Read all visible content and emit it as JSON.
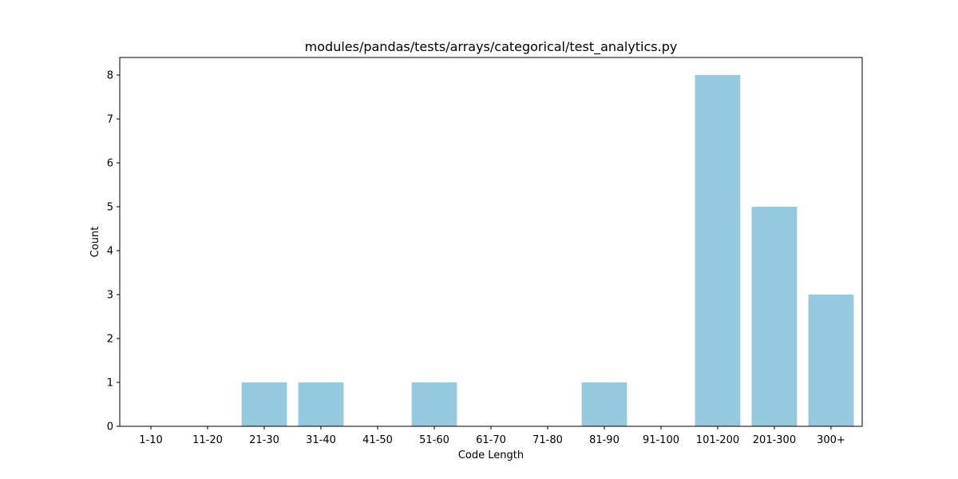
{
  "chart_data": {
    "type": "bar",
    "title": "modules/pandas/tests/arrays/categorical/test_analytics.py",
    "xlabel": "Code Length",
    "ylabel": "Count",
    "categories": [
      "1-10",
      "11-20",
      "21-30",
      "31-40",
      "41-50",
      "51-60",
      "61-70",
      "71-80",
      "81-90",
      "91-100",
      "101-200",
      "201-300",
      "300+"
    ],
    "values": [
      0,
      0,
      1,
      1,
      0,
      1,
      0,
      0,
      1,
      0,
      8,
      5,
      3
    ],
    "yticks": [
      0,
      1,
      2,
      3,
      4,
      5,
      6,
      7,
      8
    ],
    "ylim": [
      0,
      8.4
    ],
    "grid": false,
    "bar_color": "#95c9df"
  }
}
